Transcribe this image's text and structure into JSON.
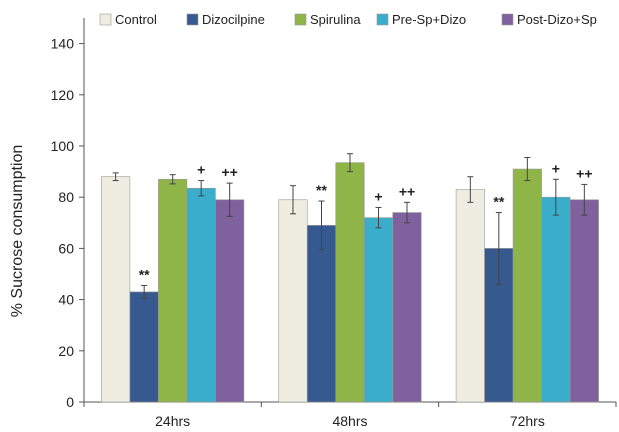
{
  "chart_data": {
    "type": "bar",
    "title": "",
    "xlabel": "",
    "ylabel": "% Sucrose consumption",
    "ylim": [
      0,
      150
    ],
    "yticks": [
      0,
      20,
      40,
      60,
      80,
      100,
      120,
      140
    ],
    "categories": [
      "24hrs",
      "48hrs",
      "72hrs"
    ],
    "legend_position": "top",
    "grid": false,
    "series": [
      {
        "name": "Control",
        "color": "#eeede1",
        "values": [
          88,
          79,
          83
        ],
        "errors": [
          1.5,
          5.5,
          5
        ],
        "annotations": [
          "",
          "",
          ""
        ]
      },
      {
        "name": "Dizocilpine",
        "color": "#36598f",
        "values": [
          43,
          69,
          60
        ],
        "errors": [
          2.5,
          9.5,
          14
        ],
        "annotations": [
          "**",
          "**",
          "**"
        ]
      },
      {
        "name": "Spirulina",
        "color": "#8fb448",
        "values": [
          87,
          93.5,
          91
        ],
        "errors": [
          1.8,
          3.5,
          4.5
        ],
        "annotations": [
          "",
          "",
          ""
        ]
      },
      {
        "name": "Pre-Sp+Dizo",
        "color": "#3aadcb",
        "values": [
          83.5,
          72,
          80
        ],
        "errors": [
          3,
          4,
          7
        ],
        "annotations": [
          "+",
          "+",
          "+"
        ]
      },
      {
        "name": "Post-Dizo+Sp",
        "color": "#7f619d",
        "values": [
          79,
          74,
          79
        ],
        "errors": [
          6.5,
          4,
          6
        ],
        "annotations": [
          "++",
          "++",
          "++"
        ]
      }
    ]
  }
}
